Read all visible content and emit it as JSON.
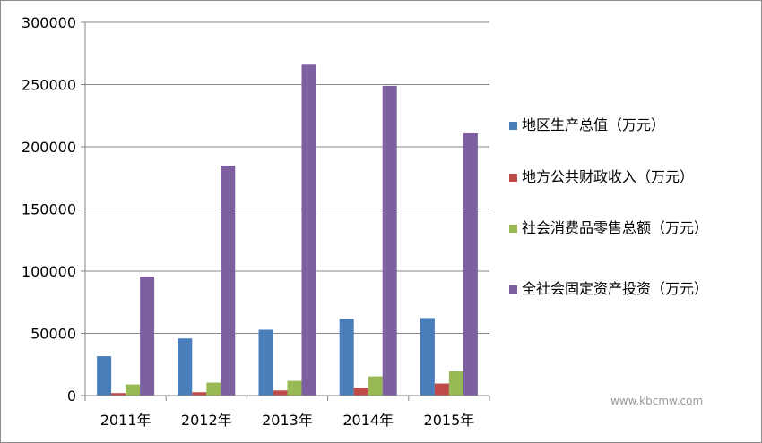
{
  "chart_data": {
    "type": "bar",
    "categories": [
      "2011年",
      "2012年",
      "2013年",
      "2014年",
      "2015年"
    ],
    "series": [
      {
        "name": "地区生产总值（万元）",
        "color": "#4a7ebb",
        "values": [
          31600,
          45900,
          52900,
          61600,
          62300
        ]
      },
      {
        "name": "地方公共财政收入（万元）",
        "color": "#be4b48",
        "values": [
          2000,
          2700,
          4100,
          6300,
          9700
        ]
      },
      {
        "name": "社会消费品零售总额（万元）",
        "color": "#98b954",
        "values": [
          8900,
          10400,
          11800,
          15400,
          19600
        ]
      },
      {
        "name": "全社会固定资产投资（万元）",
        "color": "#7d60a0",
        "values": [
          95700,
          184900,
          266000,
          249000,
          210800
        ]
      }
    ],
    "ylim": [
      0,
      300000
    ],
    "yticks": [
      0,
      50000,
      100000,
      150000,
      200000,
      250000,
      300000
    ],
    "grid": true,
    "legend": "right"
  },
  "watermark": "www.kbcmw.com"
}
